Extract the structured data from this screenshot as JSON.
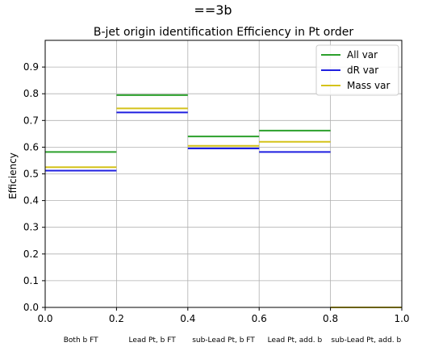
{
  "chart_data": {
    "type": "step",
    "suptitle": "==3b",
    "title": "B-jet origin identification Efficiency in Pt order",
    "xlabel": "",
    "ylabel": "Efficiency",
    "xlim": [
      0.0,
      1.0
    ],
    "ylim": [
      0.0,
      1.0
    ],
    "xticks": [
      "0.0",
      "0.2",
      "0.4",
      "0.6",
      "0.8",
      "1.0"
    ],
    "yticks": [
      "0.0",
      "0.1",
      "0.2",
      "0.3",
      "0.4",
      "0.5",
      "0.6",
      "0.7",
      "0.8",
      "0.9"
    ],
    "grid": true,
    "legend_position": "top-right",
    "categories": [
      "Both b FT",
      "Lead Pt, b FT",
      "sub-Lead Pt, b FT",
      "Lead Pt, add. b",
      "sub-Lead Pt, add. b"
    ],
    "bin_edges": [
      0.0,
      0.2,
      0.4,
      0.6,
      0.8,
      1.0
    ],
    "series": [
      {
        "name": "All var",
        "color": "#2ca02c",
        "values": [
          0.582,
          0.795,
          0.64,
          0.662,
          0.0
        ]
      },
      {
        "name": "dR var",
        "color": "#1f1fe0",
        "values": [
          0.512,
          0.73,
          0.595,
          0.582,
          0.0
        ]
      },
      {
        "name": "Mass var",
        "color": "#d4c21a",
        "values": [
          0.525,
          0.745,
          0.605,
          0.62,
          0.0
        ]
      }
    ]
  }
}
